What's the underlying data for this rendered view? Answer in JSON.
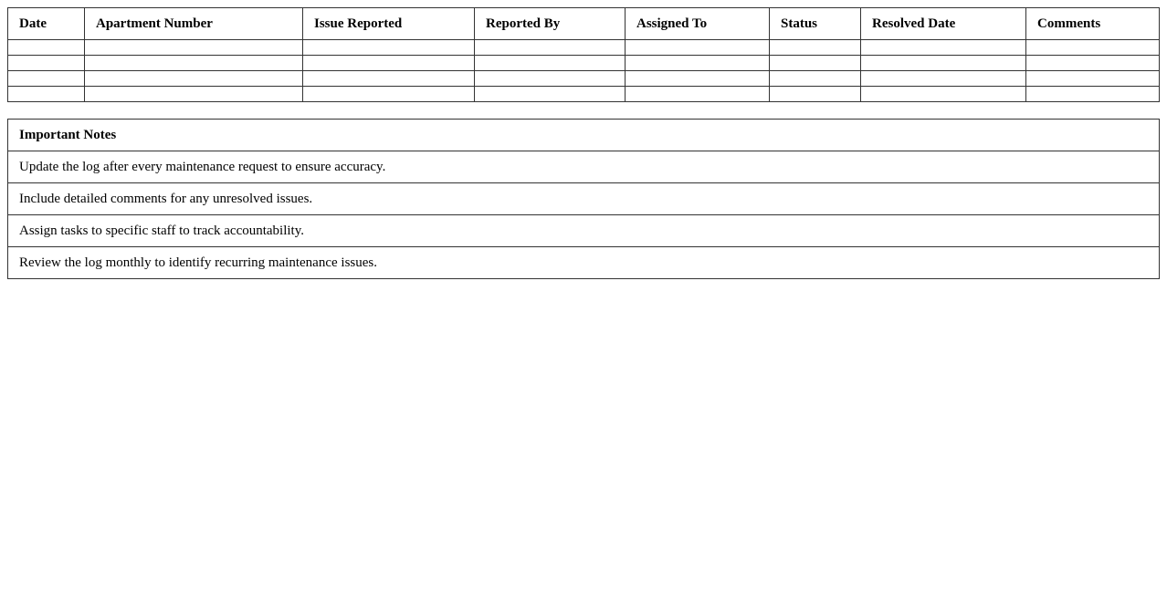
{
  "log_table": {
    "columns": [
      "Date",
      "Apartment Number",
      "Issue Reported",
      "Reported By",
      "Assigned To",
      "Status",
      "Resolved Date",
      "Comments"
    ],
    "rows": [
      [
        "",
        "",
        "",
        "",
        "",
        "",
        "",
        ""
      ],
      [
        "",
        "",
        "",
        "",
        "",
        "",
        "",
        ""
      ],
      [
        "",
        "",
        "",
        "",
        "",
        "",
        "",
        ""
      ],
      [
        "",
        "",
        "",
        "",
        "",
        "",
        "",
        ""
      ]
    ]
  },
  "notes": {
    "title": "Important Notes",
    "items": [
      "Update the log after every maintenance request to ensure accuracy.",
      "Include detailed comments for any unresolved issues.",
      "Assign tasks to specific staff to track accountability.",
      "Review the log monthly to identify recurring maintenance issues."
    ]
  }
}
